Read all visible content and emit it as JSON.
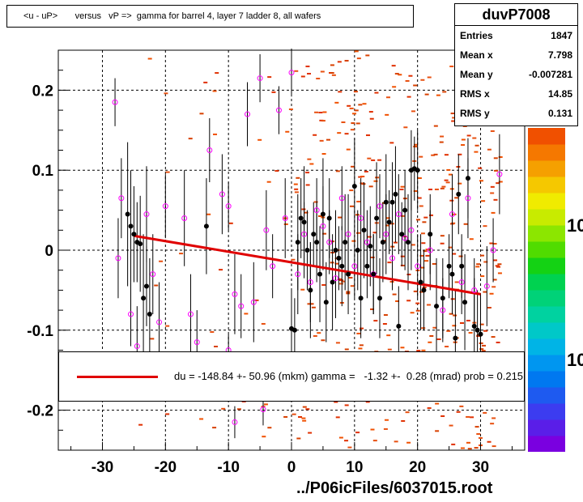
{
  "title": "<u - uP>       versus   vP =>  gamma for barrel 4, layer 7 ladder 8, all wafers",
  "stats": {
    "name": "duvP7008",
    "rows": [
      {
        "key": "Entries",
        "value": "1847"
      },
      {
        "key": "Mean x",
        "value": "7.798"
      },
      {
        "key": "Mean y",
        "value": "-0.007281"
      },
      {
        "key": "RMS x",
        "value": "14.85"
      },
      {
        "key": "RMS y",
        "value": "0.131"
      }
    ]
  },
  "legend": {
    "text": "du = -148.84 +- 50.96 (mkm) gamma =   -1.32 +-  0.28 (mrad) prob = 0.215",
    "color": "#e00000"
  },
  "footer": "../P06icFiles/6037015.root",
  "palette": {
    "labels": [
      "10",
      "10"
    ],
    "colors": [
      "#7a00e0",
      "#5a1ee8",
      "#3c3cf0",
      "#1e5af0",
      "#0078f0",
      "#0096f0",
      "#00b4e6",
      "#00c8c8",
      "#00d2a0",
      "#00d278",
      "#00d250",
      "#14d214",
      "#50dc00",
      "#8ce600",
      "#c8eb00",
      "#f0eb00",
      "#f5c800",
      "#f5a000",
      "#f57800",
      "#f05000"
    ]
  },
  "chart_data": {
    "type": "scatter",
    "xlim": [
      -37,
      37
    ],
    "ylim": [
      -0.25,
      0.25
    ],
    "xticks": [
      -30,
      -20,
      -10,
      0,
      10,
      20,
      30
    ],
    "yticks": [
      0.2,
      0.1,
      0,
      -0.1,
      -0.2
    ],
    "xtick_labels": [
      "-30",
      "-20",
      "-10",
      "0",
      "10",
      "20",
      "30"
    ],
    "ytick_labels": [
      "0.2",
      "0.1",
      "0",
      "-0.1",
      "-0.2"
    ],
    "grid": true,
    "fit_line": {
      "x": [
        -25,
        30
      ],
      "y": [
        0.018,
        -0.055
      ],
      "color": "#e00000"
    },
    "black_points": [
      [
        -26,
        0.045,
        0.09
      ],
      [
        -25.5,
        0.03,
        0.07
      ],
      [
        -25,
        0.02,
        0.06
      ],
      [
        -24.5,
        0.01,
        0.05
      ],
      [
        -24,
        0.008,
        0.06
      ],
      [
        -23.5,
        -0.06,
        0.08
      ],
      [
        -23,
        -0.045,
        0.05
      ],
      [
        -22.5,
        -0.08,
        0.07
      ],
      [
        -13.5,
        0.03,
        0.06
      ],
      [
        0,
        -0.098,
        0.05
      ],
      [
        0.5,
        -0.1,
        0.04
      ],
      [
        1,
        0.01,
        0.06
      ],
      [
        1.5,
        0.04,
        0.05
      ],
      [
        2,
        0.035,
        0.07
      ],
      [
        2.5,
        0.0,
        0.05
      ],
      [
        3,
        -0.05,
        0.06
      ],
      [
        3.5,
        0.02,
        0.04
      ],
      [
        4,
        0.01,
        0.05
      ],
      [
        4.5,
        -0.03,
        0.06
      ],
      [
        5,
        0.045,
        0.07
      ],
      [
        5.5,
        -0.065,
        0.05
      ],
      [
        6,
        0.04,
        0.05
      ],
      [
        6.5,
        -0.04,
        0.06
      ],
      [
        7,
        0.0,
        0.05
      ],
      [
        7.5,
        -0.01,
        0.04
      ],
      [
        8,
        -0.02,
        0.05
      ],
      [
        8.5,
        0.01,
        0.06
      ],
      [
        9,
        -0.03,
        0.05
      ],
      [
        10,
        0.08,
        0.06
      ],
      [
        10.5,
        0.0,
        0.05
      ],
      [
        11,
        -0.06,
        0.05
      ],
      [
        11.5,
        0.025,
        0.06
      ],
      [
        12,
        -0.02,
        0.04
      ],
      [
        12.5,
        0.005,
        0.05
      ],
      [
        13,
        -0.03,
        0.05
      ],
      [
        13.5,
        0.04,
        0.07
      ],
      [
        14,
        -0.06,
        0.05
      ],
      [
        14.5,
        0.01,
        0.05
      ],
      [
        15,
        0.06,
        0.06
      ],
      [
        15.5,
        0.035,
        0.04
      ],
      [
        16,
        0.06,
        0.05
      ],
      [
        16.5,
        0.07,
        0.06
      ],
      [
        17,
        -0.095,
        0.05
      ],
      [
        17.5,
        0.02,
        0.04
      ],
      [
        18,
        0.05,
        0.05
      ],
      [
        18.5,
        0.01,
        0.06
      ],
      [
        19,
        0.1,
        0.05
      ],
      [
        19.5,
        0.102,
        0.04
      ],
      [
        20,
        0.1,
        0.05
      ],
      [
        20.5,
        -0.04,
        0.06
      ],
      [
        21,
        -0.05,
        0.05
      ],
      [
        22,
        0.02,
        0.05
      ],
      [
        23,
        -0.07,
        0.06
      ],
      [
        24,
        -0.06,
        0.05
      ],
      [
        25,
        -0.02,
        0.04
      ],
      [
        25.5,
        -0.03,
        0.05
      ],
      [
        26,
        -0.11,
        0.06
      ],
      [
        26.5,
        0.07,
        0.05
      ],
      [
        27,
        -0.02,
        0.04
      ],
      [
        27.5,
        -0.065,
        0.06
      ],
      [
        28,
        0.09,
        0.05
      ],
      [
        29,
        -0.095,
        0.06
      ],
      [
        29.5,
        -0.1,
        0.05
      ],
      [
        30,
        -0.105,
        0.05
      ]
    ],
    "magenta_points": [
      [
        -28,
        0.185,
        0.03
      ],
      [
        -27.5,
        -0.01,
        0.05
      ],
      [
        -27,
        0.065,
        0.05
      ],
      [
        -25.5,
        -0.08,
        0.04
      ],
      [
        -24.5,
        -0.12,
        0.05
      ],
      [
        -23,
        0.045,
        0.06
      ],
      [
        -22,
        -0.03,
        0.05
      ],
      [
        -21,
        -0.09,
        0.05
      ],
      [
        -20,
        0.055,
        0.04
      ],
      [
        -17,
        0.04,
        0.06
      ],
      [
        -16,
        -0.08,
        0.05
      ],
      [
        -15,
        -0.115,
        0.04
      ],
      [
        -13,
        0.125,
        0.04
      ],
      [
        -11,
        0.07,
        0.05
      ],
      [
        -10,
        0.055,
        0.03
      ],
      [
        -9,
        -0.055,
        0.05
      ],
      [
        -8,
        -0.07,
        0.04
      ],
      [
        -7,
        0.17,
        0.04
      ],
      [
        -6,
        -0.065,
        0.05
      ],
      [
        -5,
        0.215,
        0.03
      ],
      [
        -4,
        0.025,
        0.05
      ],
      [
        -3,
        -0.02,
        0.04
      ],
      [
        -2,
        0.175,
        0.03
      ],
      [
        -1,
        0.04,
        0.05
      ],
      [
        0,
        0.222,
        0.03
      ],
      [
        1,
        -0.03,
        0.05
      ],
      [
        2,
        0.02,
        0.04
      ],
      [
        3,
        -0.04,
        0.05
      ],
      [
        4,
        0.05,
        0.04
      ],
      [
        5,
        0.03,
        0.05
      ],
      [
        6,
        0.01,
        0.04
      ],
      [
        7,
        -0.035,
        0.05
      ],
      [
        8,
        0.065,
        0.04
      ],
      [
        9,
        0.02,
        0.05
      ],
      [
        10,
        -0.02,
        0.04
      ],
      [
        11,
        0.04,
        0.05
      ],
      [
        12,
        0.01,
        0.04
      ],
      [
        13,
        -0.03,
        0.05
      ],
      [
        14,
        0.055,
        0.04
      ],
      [
        15,
        0.02,
        0.05
      ],
      [
        16,
        -0.01,
        0.04
      ],
      [
        17,
        0.045,
        0.05
      ],
      [
        18,
        0.015,
        0.04
      ],
      [
        19,
        0.025,
        0.05
      ],
      [
        20,
        -0.02,
        0.04
      ],
      [
        22,
        0.0,
        0.05
      ],
      [
        24,
        -0.075,
        0.04
      ],
      [
        25.5,
        0.045,
        0.05
      ],
      [
        27,
        -0.04,
        0.04
      ],
      [
        28,
        0.065,
        0.05
      ],
      [
        29,
        -0.05,
        0.04
      ],
      [
        31,
        -0.045,
        0.05
      ],
      [
        32,
        0.0,
        0.04
      ],
      [
        33,
        0.095,
        0.05
      ],
      [
        -4.5,
        -0.199,
        0.02
      ],
      [
        -9,
        -0.215,
        0.02
      ],
      [
        -10,
        -0.125,
        0.02
      ]
    ]
  }
}
